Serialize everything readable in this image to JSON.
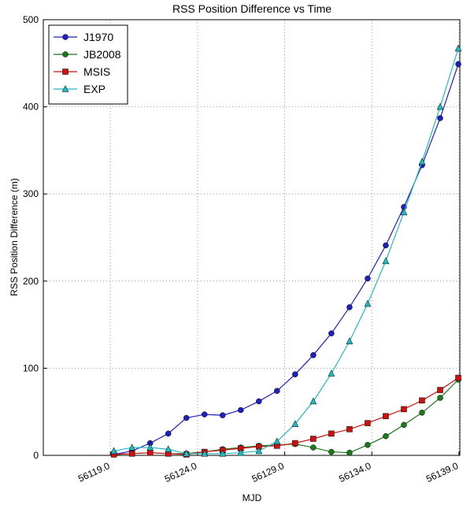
{
  "chart_data": {
    "type": "line",
    "title": "RSS Position Difference vs Time",
    "x_label": "MJD",
    "y_label": "RSS Position Difference (m)",
    "x": [
      56119.2,
      56120.24,
      56121.28,
      56122.32,
      56123.36,
      56124.4,
      56125.44,
      56126.48,
      56127.52,
      56128.56,
      56129.6,
      56130.64,
      56131.68,
      56132.72,
      56133.76,
      56134.8,
      56135.84,
      56136.88,
      56137.92,
      56138.96
    ],
    "series": [
      {
        "name": "J1970",
        "color": "#1f1fbf",
        "marker": "circle",
        "values": [
          1,
          5,
          14,
          25,
          43,
          47,
          46,
          52,
          62,
          74,
          93,
          115,
          140,
          170,
          203,
          241,
          285,
          333,
          387,
          449
        ]
      },
      {
        "name": "JB2008",
        "color": "#1a7a1a",
        "marker": "circle",
        "values": [
          1,
          2,
          3,
          2,
          2,
          4,
          7,
          9,
          11,
          12,
          13,
          9,
          4,
          3,
          12,
          22,
          35,
          49,
          66,
          87
        ]
      },
      {
        "name": "MSIS",
        "color": "#cc1111",
        "marker": "square",
        "values": [
          1,
          2,
          3,
          2,
          1,
          4,
          6,
          8,
          10,
          11,
          14,
          19,
          25,
          30,
          37,
          45,
          53,
          63,
          75,
          89
        ]
      },
      {
        "name": "EXP",
        "color": "#22b8c0",
        "marker": "triangle",
        "values": [
          5,
          9,
          9,
          7,
          2,
          2,
          2,
          3,
          5,
          16,
          36,
          62,
          94,
          131,
          174,
          223,
          279,
          337,
          400,
          467
        ]
      }
    ],
    "xlim": [
      56115.15,
      56139.05
    ],
    "xticks": [
      {
        "value": 56119,
        "label": "56119.0"
      },
      {
        "value": 56124,
        "label": "56124.0"
      },
      {
        "value": 56129,
        "label": "56129.0"
      },
      {
        "value": 56134,
        "label": "56134.0"
      },
      {
        "value": 56139,
        "label": "56139.0"
      }
    ],
    "ylim": [
      0,
      500
    ],
    "yticks": [
      0,
      100,
      200,
      300,
      400,
      500
    ],
    "grid": true,
    "legend": "upper-left"
  }
}
